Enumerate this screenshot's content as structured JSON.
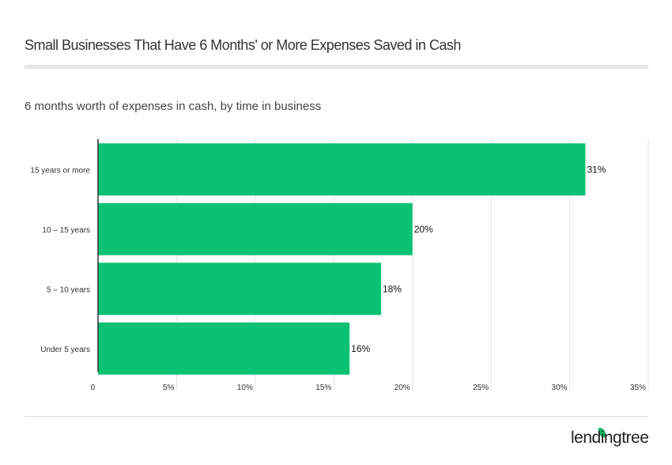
{
  "title": "Small Businesses That Have 6 Months' or More Expenses Saved in Cash",
  "subtitle": "6 months worth of expenses in cash, by time in business",
  "brand": "lendingtree",
  "chart_data": {
    "type": "bar",
    "orientation": "horizontal",
    "categories": [
      "15 years or more",
      "10 – 15 years",
      "5 – 10 years",
      "Under 5 years"
    ],
    "values": [
      31,
      20,
      18,
      16
    ],
    "data_labels": [
      "31%",
      "20%",
      "18%",
      "16%"
    ],
    "xlim": [
      0,
      35
    ],
    "xticks": [
      0,
      5,
      10,
      15,
      20,
      25,
      30,
      35
    ],
    "xtick_labels": [
      "0",
      "5%",
      "10%",
      "15%",
      "20%",
      "25%",
      "30%",
      "35%"
    ],
    "grid": true,
    "bar_color": "#0bc274"
  }
}
